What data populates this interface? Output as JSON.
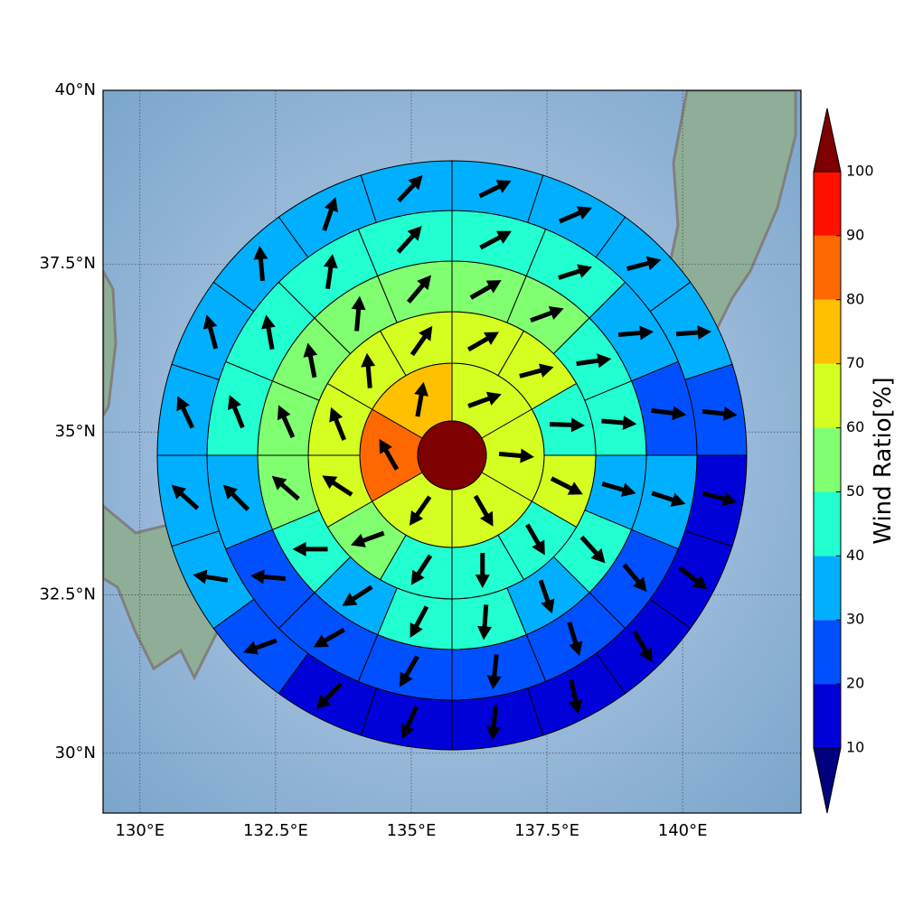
{
  "chart_data": {
    "type": "polar-sector-map",
    "projection": "mercator",
    "xlim": [
      129.32,
      142.18
    ],
    "ylim": [
      29.04,
      40
    ],
    "xticks": [
      {
        "value": 130,
        "label": "130°E"
      },
      {
        "value": 132.5,
        "label": "132.5°E"
      },
      {
        "value": 135,
        "label": "135°E"
      },
      {
        "value": 137.5,
        "label": "137.5°E"
      },
      {
        "value": 140,
        "label": "140°E"
      }
    ],
    "yticks": [
      {
        "value": 30,
        "label": "30°N"
      },
      {
        "value": 32.5,
        "label": "32.5°N"
      },
      {
        "value": 35,
        "label": "35°N"
      },
      {
        "value": 37.5,
        "label": "37.5°N"
      },
      {
        "value": 40,
        "label": "40°N"
      }
    ],
    "grid": true,
    "center_value": 105,
    "rings": [
      {
        "values": [
          65,
          65,
          65,
          65,
          85,
          75
        ],
        "directions": [
          70,
          95,
          150,
          215,
          330,
          10
        ]
      },
      {
        "values": [
          65,
          65,
          45,
          65,
          45,
          45,
          45,
          55,
          65,
          65,
          65,
          65
        ],
        "directions": [
          60,
          75,
          92,
          117,
          150,
          180,
          213,
          250,
          303,
          338,
          355,
          35
        ]
      },
      {
        "values": [
          55,
          55,
          45,
          45,
          35,
          45,
          35,
          45,
          45,
          35,
          45,
          55,
          55,
          55,
          55,
          55
        ],
        "directions": [
          60,
          70,
          82,
          95,
          106,
          138,
          161,
          184,
          208,
          237,
          270,
          311,
          336,
          349,
          5,
          40
        ]
      },
      {
        "values": [
          45,
          45,
          35,
          25,
          35,
          25,
          25,
          25,
          25,
          25,
          25,
          35,
          45,
          45,
          45,
          45
        ],
        "directions": [
          62,
          72,
          85,
          97,
          108,
          140,
          163,
          186,
          210,
          240,
          275,
          315,
          338,
          350,
          8,
          42
        ]
      },
      {
        "values": [
          35,
          35,
          35,
          35,
          25,
          15,
          15,
          15,
          15,
          15,
          15,
          15,
          25,
          35,
          35,
          35,
          35,
          35,
          35,
          35
        ],
        "directions": [
          64,
          67,
          75,
          86,
          96,
          105,
          128,
          150,
          168,
          186,
          204,
          224,
          250,
          279,
          312,
          335,
          345,
          355,
          19,
          43
        ]
      }
    ],
    "colorbar": {
      "label": "Wind Ratio[%]",
      "ticks": [
        10,
        20,
        30,
        40,
        50,
        60,
        70,
        80,
        90,
        100
      ],
      "colors": [
        "#00007f",
        "#0000d8",
        "#0050ff",
        "#00b0ff",
        "#22ffd0",
        "#80ff70",
        "#d4ff20",
        "#ffc000",
        "#ff6800",
        "#ff1000",
        "#7f0000"
      ]
    }
  }
}
